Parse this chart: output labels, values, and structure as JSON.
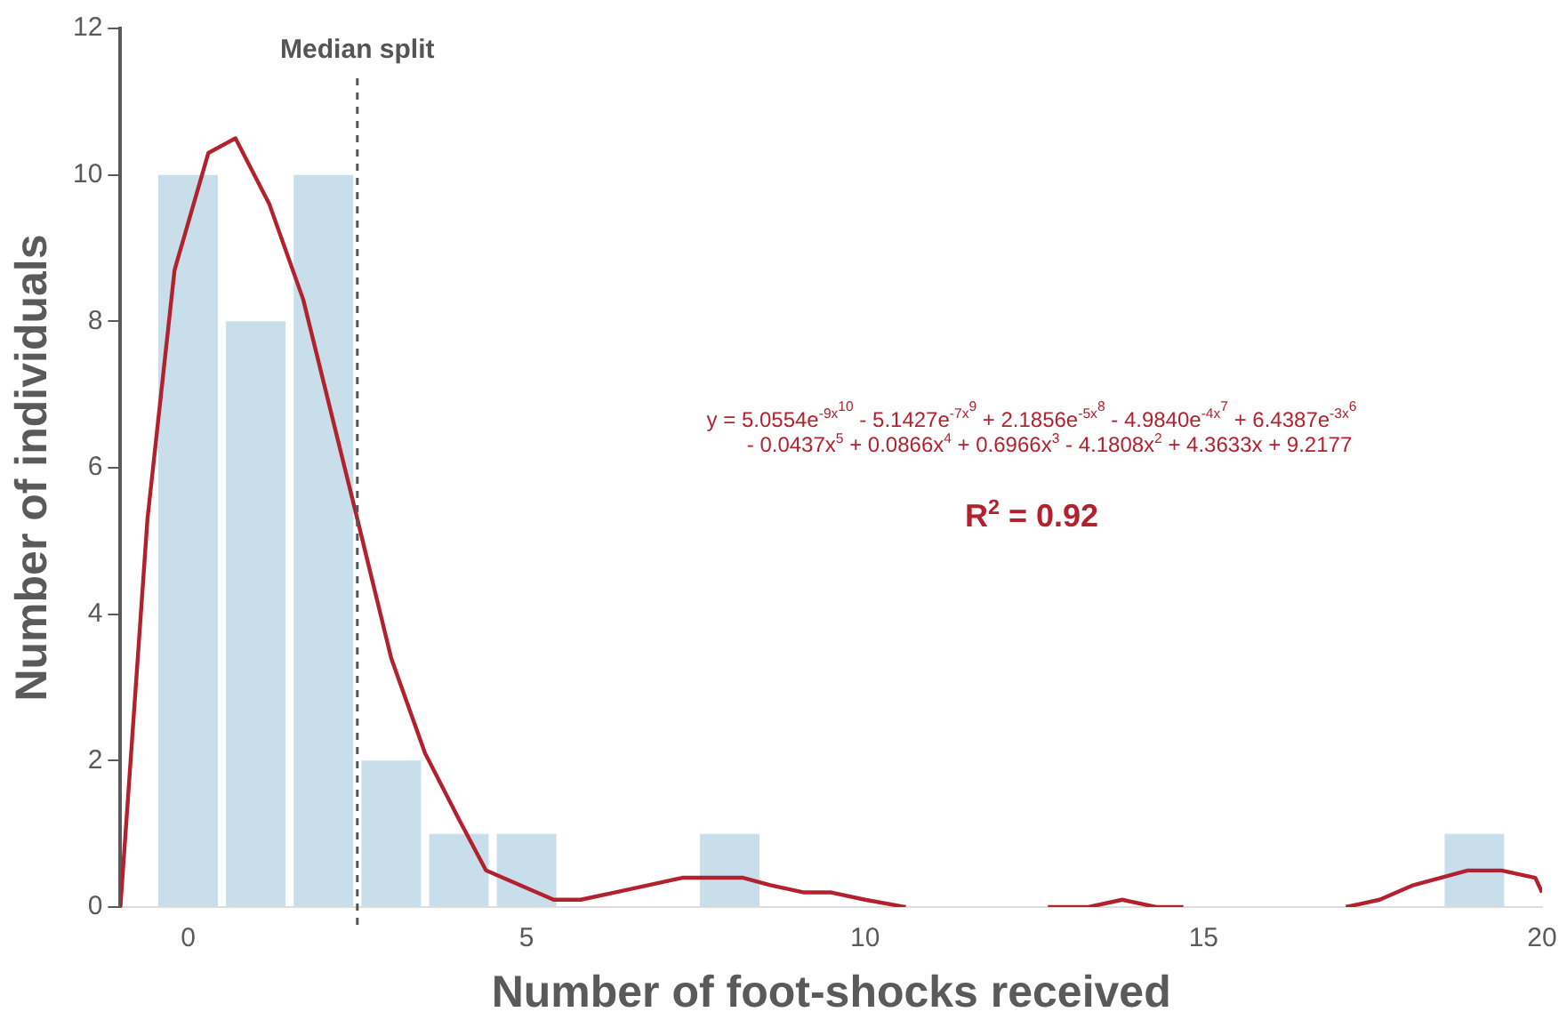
{
  "chart_data": {
    "type": "bar",
    "xlabel": "Number of foot-shocks received",
    "ylabel": "Number of individuals",
    "x": [
      0,
      1,
      2,
      3,
      4,
      5,
      6,
      7,
      8,
      9,
      10,
      11,
      12,
      13,
      14,
      15,
      16,
      17,
      18,
      19
    ],
    "xlim": [
      -1,
      20
    ],
    "xticks": [
      0,
      5,
      10,
      15,
      20
    ],
    "ylim": [
      0,
      12
    ],
    "yticks": [
      0,
      2,
      4,
      6,
      8,
      10,
      12
    ],
    "grid": false,
    "legend": false,
    "marker": "none",
    "series": [
      {
        "color": "#c8dfeb",
        "values": [
          10,
          8,
          10,
          2,
          1,
          1,
          0,
          0,
          1,
          0,
          0,
          0,
          0,
          0,
          0,
          0,
          0,
          0,
          0,
          1
        ]
      },
      {
        "type": "line",
        "color": "#b2222e",
        "line_style": "solid",
        "x": [
          -1,
          -0.6,
          -0.2,
          0.3,
          0.7,
          1.2,
          1.7,
          2.5,
          3,
          3.5,
          4,
          4.4,
          4.9,
          5.4,
          5.8,
          6.3,
          6.8,
          7.3,
          7.7,
          8.2,
          8.6,
          9.1,
          9.5,
          10,
          10.6,
          11.5,
          12.7,
          13.3,
          13.8,
          14.3,
          14.7,
          16,
          17.1,
          17.6,
          18.1,
          18.5,
          18.9,
          19.4,
          19.9,
          20
        ],
        "values": [
          0,
          5.3,
          8.7,
          10.3,
          10.5,
          9.6,
          8.3,
          5.3,
          3.4,
          2.1,
          1.2,
          0.5,
          0.3,
          0.1,
          0.1,
          0.2,
          0.3,
          0.4,
          0.4,
          0.4,
          0.3,
          0.2,
          0.2,
          0.1,
          0,
          null,
          0,
          0,
          0.1,
          0,
          0,
          null,
          0,
          0.1,
          0.3,
          0.4,
          0.5,
          0.5,
          0.4,
          0.2
        ]
      }
    ],
    "ref_lines": [
      {
        "axis": "x",
        "value": 2.5,
        "label": "Median split",
        "color": "#555555",
        "line_style": "dashed"
      }
    ],
    "annotations": [
      "y = 5.0554e$^{-9x}$$^{10}$ - 5.1427e$^{-7x}$$^{9}$ + 2.1856e$^{-5x}$$^{8}$ - 4.9840e$^{-4x}$$^{7}$ + 6.4387e$^{-3x}$$^{6}$",
      "- 0.0437x$^{5}$ + 0.0866x$^{4}$ + 0.6966x$^{3}$ - 4.1808x$^{2}$ + 4.3633x + 9.2177",
      "R$^{2}$ = 0.92"
    ]
  }
}
